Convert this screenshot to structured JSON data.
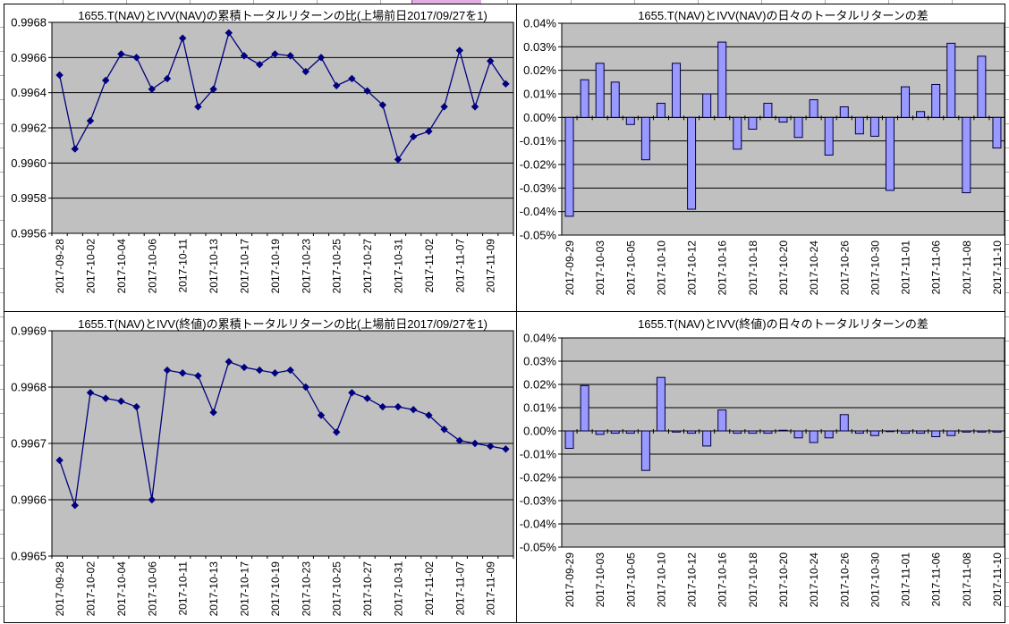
{
  "colors": {
    "plot_background": "#c0c0c0",
    "gridline": "#000000",
    "line_series": "#000080",
    "marker": "#000080",
    "bar_fill": "#9999ff",
    "bar_border": "#000040",
    "axis_text": "#000000",
    "sheet_cell_fragment": "#e2aee2"
  },
  "chart_data": [
    {
      "id": "nav-cumulative-ratio",
      "type": "line",
      "title": "1655.T(NAV)とIVV(NAV)の累積トータルリターンの比(上場前日2017/09/27を1)",
      "ylabel": "",
      "xlabel": "",
      "ylim": [
        0.9956,
        0.9968
      ],
      "ytick_labels": [
        "0.9968",
        "0.9966",
        "0.9964",
        "0.9962",
        "0.9960",
        "0.9958",
        "0.9956"
      ],
      "label_every": 2,
      "grid": true,
      "categories": [
        "2017-09-28",
        "2017-09-29",
        "2017-10-02",
        "2017-10-03",
        "2017-10-04",
        "2017-10-05",
        "2017-10-06",
        "2017-10-10",
        "2017-10-11",
        "2017-10-12",
        "2017-10-13",
        "2017-10-16",
        "2017-10-17",
        "2017-10-18",
        "2017-10-19",
        "2017-10-20",
        "2017-10-23",
        "2017-10-24",
        "2017-10-25",
        "2017-10-26",
        "2017-10-27",
        "2017-10-30",
        "2017-10-31",
        "2017-11-01",
        "2017-11-02",
        "2017-11-06",
        "2017-11-07",
        "2017-11-08",
        "2017-11-09",
        "2017-11-10"
      ],
      "values": [
        0.9965,
        0.99608,
        0.99624,
        0.99647,
        0.99662,
        0.9966,
        0.99642,
        0.99648,
        0.99671,
        0.99632,
        0.99642,
        0.99674,
        0.99661,
        0.99656,
        0.99662,
        0.99661,
        0.99652,
        0.9966,
        0.99644,
        0.99648,
        0.99641,
        0.99633,
        0.99602,
        0.99615,
        0.99618,
        0.99632,
        0.99664,
        0.99632,
        0.99658,
        0.99645
      ]
    },
    {
      "id": "nav-daily-return-diff",
      "type": "bar",
      "title": "1655.T(NAV)とIVV(NAV)の日々のトータルリターンの差",
      "ylabel": "",
      "xlabel": "",
      "ylim": [
        -0.05,
        0.04
      ],
      "ytick_labels": [
        "0.04%",
        "0.03%",
        "0.02%",
        "0.01%",
        "0.00%",
        "-0.01%",
        "-0.02%",
        "-0.03%",
        "-0.04%",
        "-0.05%"
      ],
      "label_every": 2,
      "grid": true,
      "categories": [
        "2017-09-29",
        "2017-10-02",
        "2017-10-03",
        "2017-10-04",
        "2017-10-05",
        "2017-10-06",
        "2017-10-10",
        "2017-10-11",
        "2017-10-12",
        "2017-10-13",
        "2017-10-16",
        "2017-10-17",
        "2017-10-18",
        "2017-10-19",
        "2017-10-20",
        "2017-10-23",
        "2017-10-24",
        "2017-10-25",
        "2017-10-26",
        "2017-10-27",
        "2017-10-30",
        "2017-10-31",
        "2017-11-01",
        "2017-11-02",
        "2017-11-06",
        "2017-11-07",
        "2017-11-08",
        "2017-11-09",
        "2017-11-10"
      ],
      "values": [
        -0.042,
        0.016,
        0.023,
        0.015,
        -0.003,
        -0.018,
        0.006,
        0.023,
        -0.039,
        0.01,
        0.032,
        -0.0135,
        -0.005,
        0.006,
        -0.002,
        -0.0085,
        0.0075,
        -0.016,
        0.0045,
        -0.007,
        -0.008,
        -0.031,
        0.013,
        0.0025,
        0.014,
        0.0315,
        -0.032,
        0.026,
        -0.013
      ]
    },
    {
      "id": "close-cumulative-ratio",
      "type": "line",
      "title": "1655.T(NAV)とIVV(終値)の累積トータルリターンの比(上場前日2017/09/27を1)",
      "ylabel": "",
      "xlabel": "",
      "ylim": [
        0.9965,
        0.9969
      ],
      "ytick_labels": [
        "0.9969",
        "0.9968",
        "0.9967",
        "0.9966",
        "0.9965"
      ],
      "label_every": 2,
      "grid": true,
      "categories": [
        "2017-09-28",
        "2017-09-29",
        "2017-10-02",
        "2017-10-03",
        "2017-10-04",
        "2017-10-05",
        "2017-10-06",
        "2017-10-10",
        "2017-10-11",
        "2017-10-12",
        "2017-10-13",
        "2017-10-16",
        "2017-10-17",
        "2017-10-18",
        "2017-10-19",
        "2017-10-20",
        "2017-10-23",
        "2017-10-24",
        "2017-10-25",
        "2017-10-26",
        "2017-10-27",
        "2017-10-30",
        "2017-10-31",
        "2017-11-01",
        "2017-11-02",
        "2017-11-06",
        "2017-11-07",
        "2017-11-08",
        "2017-11-09",
        "2017-11-10"
      ],
      "values": [
        0.99667,
        0.99659,
        0.99679,
        0.99678,
        0.996775,
        0.996765,
        0.9966,
        0.99683,
        0.996825,
        0.99682,
        0.996755,
        0.996845,
        0.996835,
        0.99683,
        0.996825,
        0.99683,
        0.9968,
        0.99675,
        0.99672,
        0.99679,
        0.99678,
        0.996765,
        0.996765,
        0.99676,
        0.99675,
        0.996725,
        0.996705,
        0.9967,
        0.996695,
        0.99669
      ]
    },
    {
      "id": "close-daily-return-diff",
      "type": "bar",
      "title": "1655.T(NAV)とIVV(終値)の日々のトータルリターンの差",
      "ylabel": "",
      "xlabel": "",
      "ylim": [
        -0.05,
        0.04
      ],
      "ytick_labels": [
        "0.04%",
        "0.03%",
        "0.02%",
        "0.01%",
        "0.00%",
        "-0.01%",
        "-0.02%",
        "-0.03%",
        "-0.04%",
        "-0.05%"
      ],
      "label_every": 2,
      "grid": true,
      "categories": [
        "2017-09-29",
        "2017-10-02",
        "2017-10-03",
        "2017-10-04",
        "2017-10-05",
        "2017-10-06",
        "2017-10-10",
        "2017-10-11",
        "2017-10-12",
        "2017-10-13",
        "2017-10-16",
        "2017-10-17",
        "2017-10-18",
        "2017-10-19",
        "2017-10-20",
        "2017-10-23",
        "2017-10-24",
        "2017-10-25",
        "2017-10-26",
        "2017-10-27",
        "2017-10-30",
        "2017-10-31",
        "2017-11-01",
        "2017-11-02",
        "2017-11-06",
        "2017-11-07",
        "2017-11-08",
        "2017-11-09",
        "2017-11-10"
      ],
      "values": [
        -0.0075,
        0.0195,
        -0.0015,
        -0.001,
        -0.001,
        -0.017,
        0.023,
        -0.0005,
        -0.001,
        -0.0065,
        0.009,
        -0.001,
        -0.001,
        -0.001,
        0.0003,
        -0.003,
        -0.005,
        -0.003,
        0.007,
        -0.001,
        -0.002,
        -0.0002,
        -0.001,
        -0.001,
        -0.0025,
        -0.002,
        -0.0005,
        -0.0005,
        -0.0005
      ]
    }
  ]
}
